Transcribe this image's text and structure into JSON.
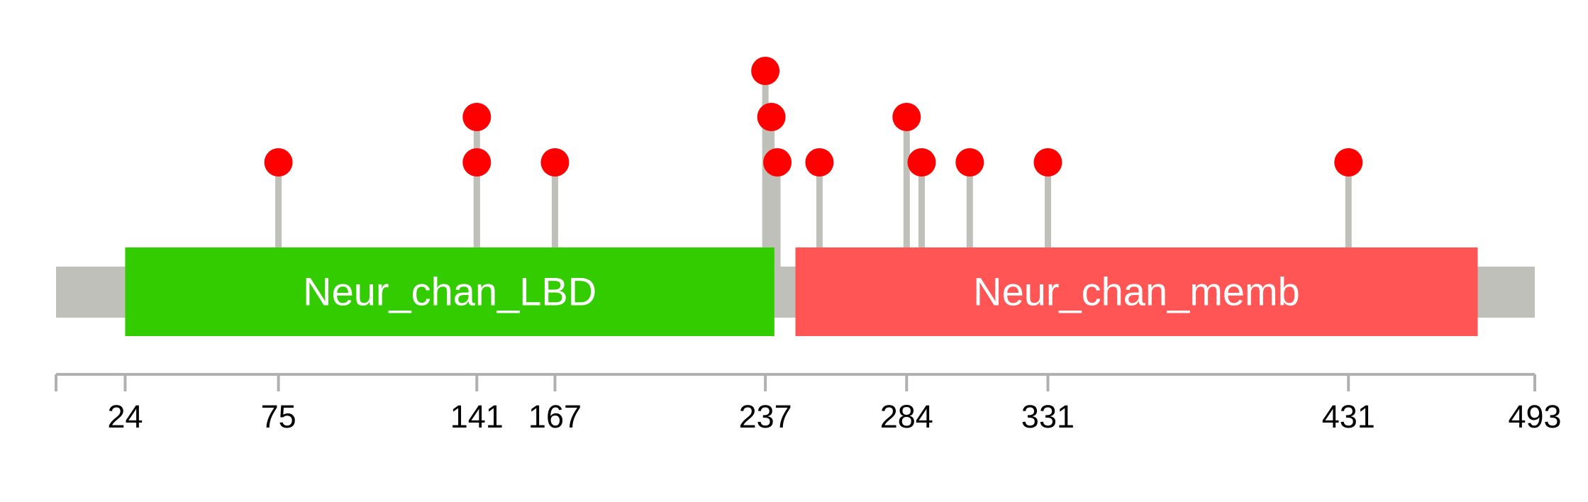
{
  "protein": {
    "length_start": 1,
    "length_end": 493
  },
  "colors": {
    "backbone": "#bfc0b9",
    "stem": "#bfc0b9",
    "marker": "#ff0000",
    "axis": "#b0b0b0",
    "background": "#ffffff"
  },
  "domains": [
    {
      "name": "Neur_chan_LBD",
      "start": 24,
      "end": 240,
      "color": "#33cc00"
    },
    {
      "name": "Neur_chan_memb",
      "start": 247,
      "end": 474,
      "color": "#ff5555"
    }
  ],
  "mutations": [
    {
      "position": 75,
      "level": 1
    },
    {
      "position": 141,
      "level": 1
    },
    {
      "position": 141,
      "level": 2
    },
    {
      "position": 167,
      "level": 1
    },
    {
      "position": 237,
      "level": 3
    },
    {
      "position": 239,
      "level": 2
    },
    {
      "position": 241,
      "level": 1
    },
    {
      "position": 255,
      "level": 1
    },
    {
      "position": 284,
      "level": 2
    },
    {
      "position": 289,
      "level": 1
    },
    {
      "position": 305,
      "level": 1
    },
    {
      "position": 331,
      "level": 1
    },
    {
      "position": 431,
      "level": 1
    }
  ],
  "axis": {
    "ticks": [
      {
        "value": 1,
        "label": ""
      },
      {
        "value": 24,
        "label": "24"
      },
      {
        "value": 75,
        "label": "75"
      },
      {
        "value": 141,
        "label": "141"
      },
      {
        "value": 167,
        "label": "167"
      },
      {
        "value": 237,
        "label": "237"
      },
      {
        "value": 284,
        "label": "284"
      },
      {
        "value": 331,
        "label": "331"
      },
      {
        "value": 431,
        "label": "431"
      },
      {
        "value": 493,
        "label": "493"
      }
    ]
  }
}
